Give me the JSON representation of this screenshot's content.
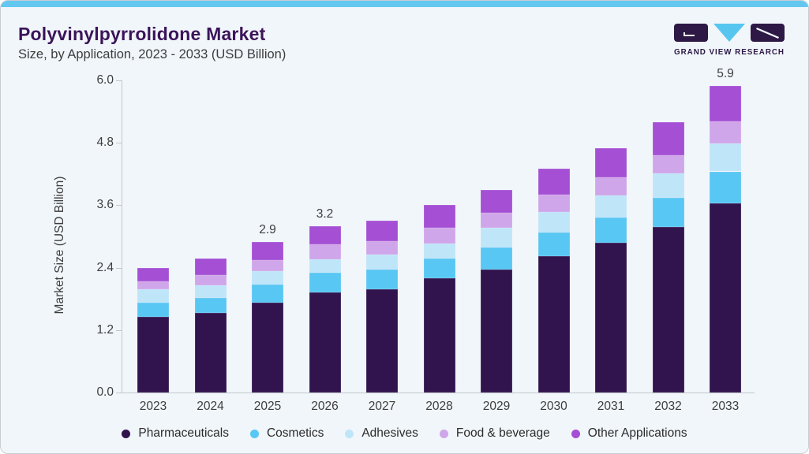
{
  "header": {
    "title": "Polyvinylpyrrolidone Market",
    "subtitle": "Size, by Application, 2023 - 2033 (USD Billion)"
  },
  "logo": {
    "text": "GRAND VIEW RESEARCH",
    "dark_color": "#2e1846",
    "triangle_color": "#56c6ef"
  },
  "colors": {
    "background": "#f1f6fa",
    "card_border": "#c9ced3",
    "accent_strip": "#63c7f0",
    "title": "#3b1459",
    "text": "#3d3d3d",
    "axis": "#c2c7cc"
  },
  "chart_data": {
    "type": "bar",
    "stacked": true,
    "title": "Polyvinylpyrrolidone Market Size, by Application, 2023 - 2033 (USD Billion)",
    "xlabel": "",
    "ylabel": "Market Size (USD Billion)",
    "ylim": [
      0.0,
      6.0
    ],
    "yticks": [
      "6.0",
      "4.8",
      "3.6",
      "2.4",
      "1.2",
      "0.0"
    ],
    "ytick_values": [
      6.0,
      4.8,
      3.6,
      2.4,
      1.2,
      0.0
    ],
    "grid": false,
    "legend_position": "bottom",
    "categories": [
      "2023",
      "2024",
      "2025",
      "2026",
      "2027",
      "2028",
      "2029",
      "2030",
      "2031",
      "2032",
      "2033"
    ],
    "series": [
      {
        "name": "Pharmaceuticals",
        "color": "#31134d",
        "values": [
          1.45,
          1.53,
          1.73,
          1.93,
          1.99,
          2.19,
          2.37,
          2.62,
          2.88,
          3.18,
          3.63
        ]
      },
      {
        "name": "Cosmetics",
        "color": "#58c7f3",
        "values": [
          0.27,
          0.29,
          0.34,
          0.37,
          0.37,
          0.38,
          0.42,
          0.46,
          0.49,
          0.56,
          0.62
        ]
      },
      {
        "name": "Adhesives",
        "color": "#bfe5f9",
        "values": [
          0.26,
          0.24,
          0.26,
          0.26,
          0.29,
          0.29,
          0.37,
          0.39,
          0.42,
          0.47,
          0.54
        ]
      },
      {
        "name": "Food & beverage",
        "color": "#cfa6e9",
        "values": [
          0.15,
          0.2,
          0.21,
          0.29,
          0.26,
          0.31,
          0.3,
          0.33,
          0.34,
          0.35,
          0.42
        ]
      },
      {
        "name": "Other Applications",
        "color": "#a44fd4",
        "values": [
          0.27,
          0.31,
          0.36,
          0.35,
          0.39,
          0.43,
          0.44,
          0.5,
          0.57,
          0.64,
          0.68
        ]
      }
    ],
    "bar_value_labels": [
      "",
      "",
      "2.9",
      "3.2",
      "",
      "",
      "",
      "",
      "",
      "",
      "5.9"
    ]
  }
}
